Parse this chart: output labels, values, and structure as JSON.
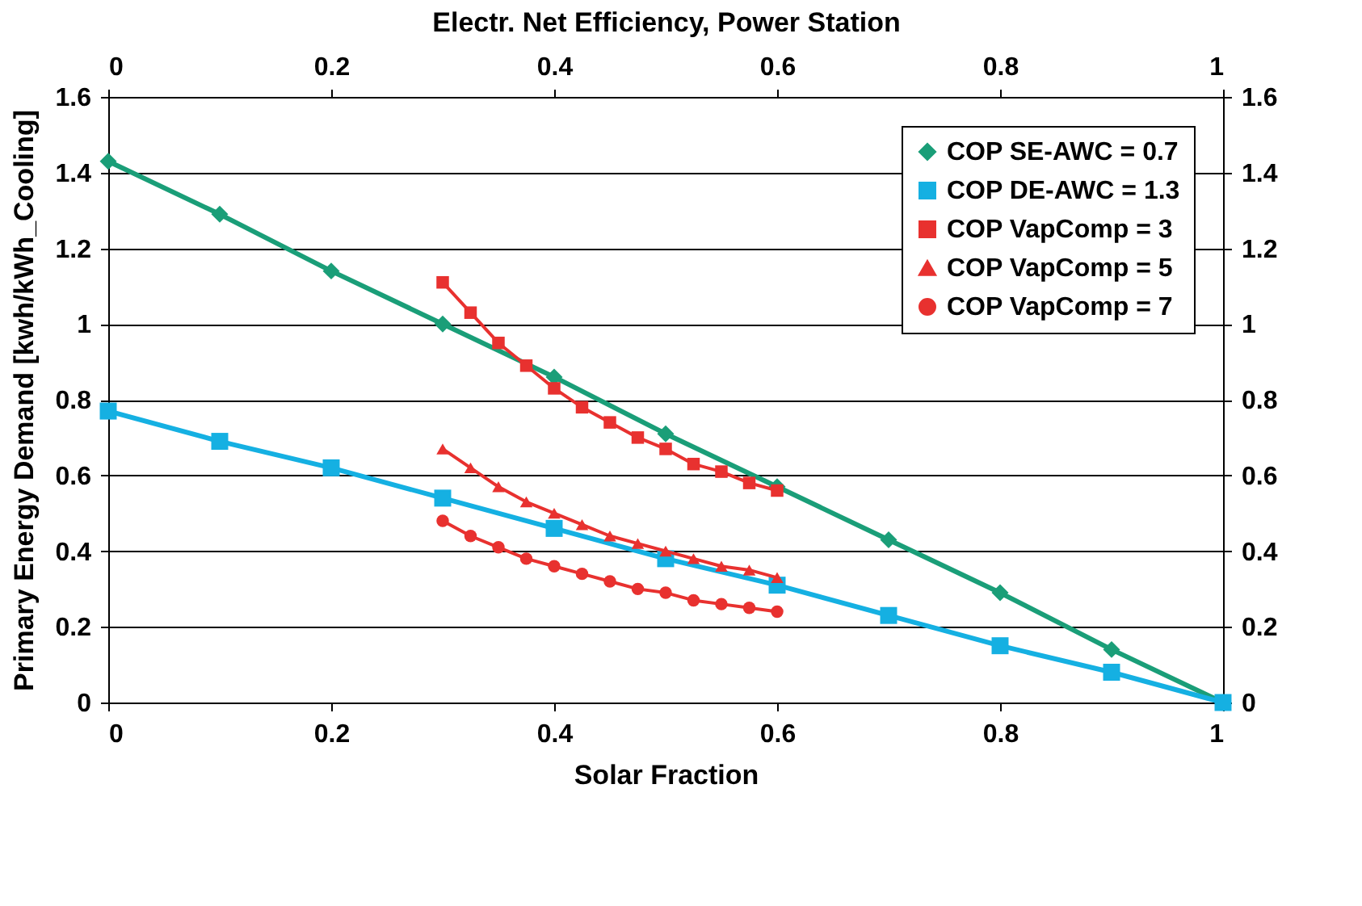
{
  "chart_data": {
    "type": "line",
    "xlabel": "Solar Fraction",
    "ylabel": "Primary Energy Demand [kwh/kWh_Cooling]",
    "x2label": "Electr. Net Efficiency, Power Station",
    "xlim": [
      0,
      1
    ],
    "xticks": [
      0,
      0.2,
      0.4,
      0.6,
      0.8,
      1
    ],
    "x2lim": [
      0,
      1
    ],
    "x2ticks": [
      0,
      0.2,
      0.4,
      0.6,
      0.8,
      1
    ],
    "ylim": [
      0,
      1.6
    ],
    "yticks": [
      0,
      0.2,
      0.4,
      0.6,
      0.8,
      1,
      1.2,
      1.4,
      1.6
    ],
    "y2lim": [
      0,
      1.6
    ],
    "y2ticks": [
      0,
      0.2,
      0.4,
      0.6,
      0.8,
      1,
      1.2,
      1.4,
      1.6
    ],
    "grid": "y",
    "legend": "top right",
    "line_style": "solid",
    "series": [
      {
        "name": "COP SE-AWC = 0.7",
        "color": "#1a9e78",
        "marker": "diamond",
        "x": [
          0,
          0.1,
          0.2,
          0.3,
          0.4,
          0.5,
          0.6,
          0.7,
          0.8,
          0.9,
          1
        ],
        "values": [
          1.43,
          1.29,
          1.14,
          1.0,
          0.86,
          0.71,
          0.57,
          0.43,
          0.29,
          0.14,
          0
        ]
      },
      {
        "name": "COP DE-AWC = 1.3",
        "color": "#15b0e2",
        "marker": "square",
        "x": [
          0,
          0.1,
          0.2,
          0.3,
          0.4,
          0.5,
          0.6,
          0.7,
          0.8,
          0.9,
          1
        ],
        "values": [
          0.77,
          0.69,
          0.62,
          0.54,
          0.46,
          0.38,
          0.31,
          0.23,
          0.15,
          0.08,
          0
        ]
      },
      {
        "name": "COP VapComp = 3",
        "color": "#e8312f",
        "marker": "square",
        "axis": "x2",
        "x": [
          0.3,
          0.325,
          0.35,
          0.375,
          0.4,
          0.425,
          0.45,
          0.475,
          0.5,
          0.525,
          0.55,
          0.575,
          0.6
        ],
        "values": [
          1.11,
          1.03,
          0.95,
          0.89,
          0.83,
          0.78,
          0.74,
          0.7,
          0.67,
          0.63,
          0.61,
          0.58,
          0.56
        ]
      },
      {
        "name": "COP VapComp = 5",
        "color": "#e8312f",
        "marker": "triangle",
        "axis": "x2",
        "x": [
          0.3,
          0.325,
          0.35,
          0.375,
          0.4,
          0.425,
          0.45,
          0.475,
          0.5,
          0.525,
          0.55,
          0.575,
          0.6
        ],
        "values": [
          0.67,
          0.62,
          0.57,
          0.53,
          0.5,
          0.47,
          0.44,
          0.42,
          0.4,
          0.38,
          0.36,
          0.35,
          0.33
        ]
      },
      {
        "name": "COP VapComp = 7",
        "color": "#e8312f",
        "marker": "circle",
        "axis": "x2",
        "x": [
          0.3,
          0.325,
          0.35,
          0.375,
          0.4,
          0.425,
          0.45,
          0.475,
          0.5,
          0.525,
          0.55,
          0.575,
          0.6
        ],
        "values": [
          0.48,
          0.44,
          0.41,
          0.38,
          0.36,
          0.34,
          0.32,
          0.3,
          0.29,
          0.27,
          0.26,
          0.25,
          0.24
        ]
      }
    ]
  }
}
